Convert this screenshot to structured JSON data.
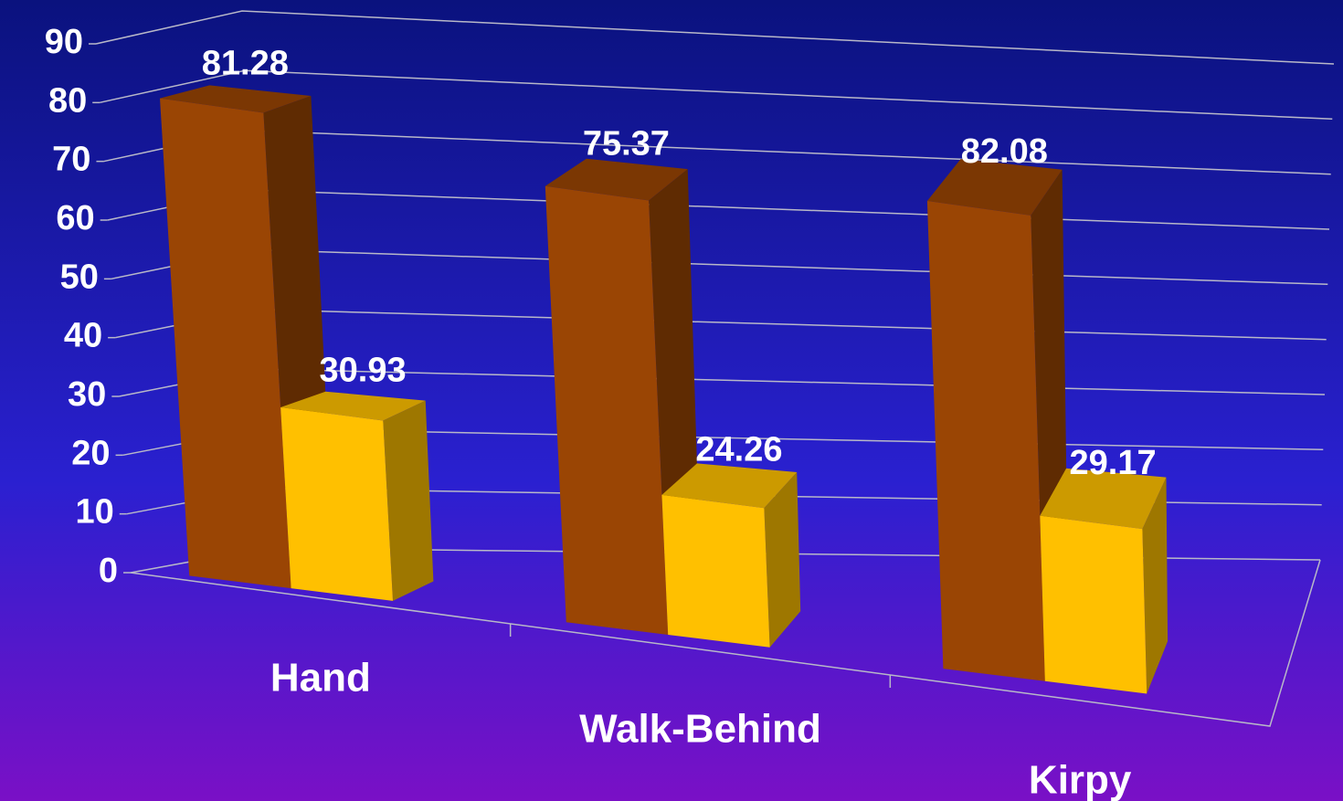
{
  "chart_data": {
    "type": "bar3d",
    "categories": [
      "Hand",
      "Walk-Behind",
      "Kirpy"
    ],
    "series": [
      {
        "color": "#9a4504",
        "values": [
          81.28,
          75.37,
          82.08
        ]
      },
      {
        "color": "#ffc000",
        "values": [
          30.93,
          24.26,
          29.17
        ]
      }
    ],
    "ylim": [
      0,
      90
    ],
    "yticks": [
      0,
      10,
      20,
      30,
      40,
      50,
      60,
      70,
      80,
      90
    ],
    "grid": true
  }
}
